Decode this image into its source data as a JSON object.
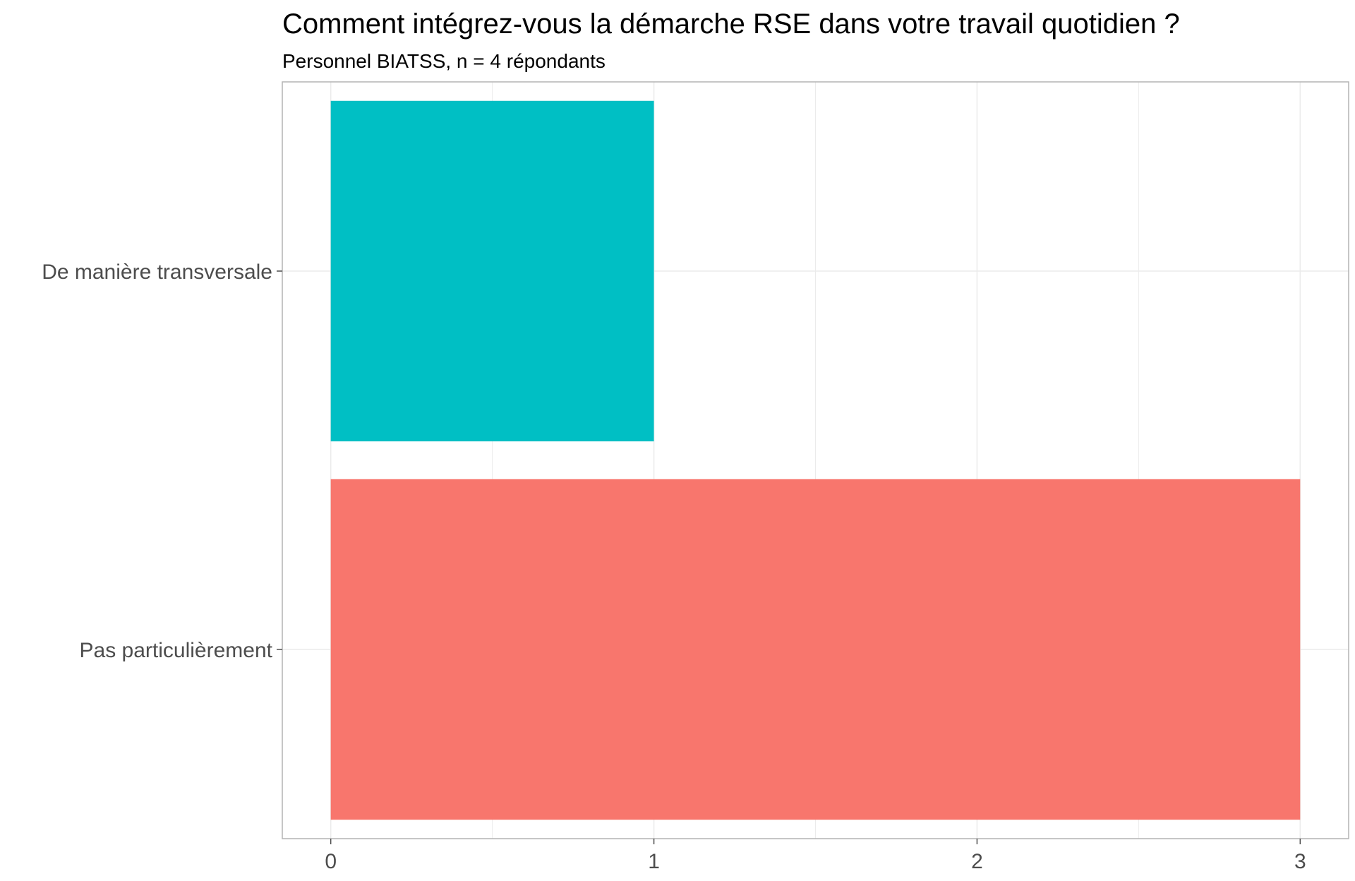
{
  "chart_data": {
    "type": "bar",
    "orientation": "horizontal",
    "title": "Comment intégrez-vous la démarche RSE dans votre travail quotidien ?",
    "subtitle": "Personnel BIATSS, n = 4 répondants",
    "xlabel": "",
    "ylabel": "",
    "categories": [
      "De manière transversale",
      "Pas particulièrement"
    ],
    "values": [
      1,
      3
    ],
    "colors": [
      "#00BFC4",
      "#F8766D"
    ],
    "x_ticks": [
      0,
      1,
      2,
      3
    ],
    "x_minor_ticks": [
      0.5,
      1.5,
      2.5
    ],
    "xlim": [
      -0.15,
      3.15
    ],
    "grid": true,
    "legend": "none"
  },
  "style": {
    "grid_color": "#ebebeb",
    "panel_border_color": "#b3b3b3",
    "tick_color": "#4d4d4d",
    "title_color": "#000000"
  }
}
